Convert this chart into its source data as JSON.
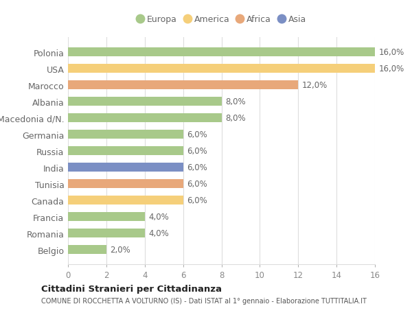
{
  "countries": [
    "Polonia",
    "USA",
    "Marocco",
    "Albania",
    "Macedonia d/N.",
    "Germania",
    "Russia",
    "India",
    "Tunisia",
    "Canada",
    "Francia",
    "Romania",
    "Belgio"
  ],
  "values": [
    16.0,
    16.0,
    12.0,
    8.0,
    8.0,
    6.0,
    6.0,
    6.0,
    6.0,
    6.0,
    4.0,
    4.0,
    2.0
  ],
  "colors": [
    "#a8c98a",
    "#f5cf7a",
    "#e8a87a",
    "#a8c98a",
    "#a8c98a",
    "#a8c98a",
    "#a8c98a",
    "#7b8fc4",
    "#e8a87a",
    "#f5cf7a",
    "#a8c98a",
    "#a8c98a",
    "#a8c98a"
  ],
  "legend_labels": [
    "Europa",
    "America",
    "Africa",
    "Asia"
  ],
  "legend_colors": [
    "#a8c98a",
    "#f5cf7a",
    "#e8a87a",
    "#7b8fc4"
  ],
  "xlim": [
    0,
    16
  ],
  "xticks": [
    0,
    2,
    4,
    6,
    8,
    10,
    12,
    14,
    16
  ],
  "title": "Cittadini Stranieri per Cittadinanza",
  "subtitle": "COMUNE DI ROCCHETTA A VOLTURNO (IS) - Dati ISTAT al 1° gennaio - Elaborazione TUTTITALIA.IT",
  "background_color": "#ffffff",
  "bar_bg_color": "#ffffff",
  "grid_color": "#dddddd",
  "label_color": "#666666",
  "tick_color": "#888888",
  "value_label_fmt": [
    "16,0%",
    "16,0%",
    "12,0%",
    "8,0%",
    "8,0%",
    "6,0%",
    "6,0%",
    "6,0%",
    "6,0%",
    "6,0%",
    "4,0%",
    "4,0%",
    "2,0%"
  ]
}
